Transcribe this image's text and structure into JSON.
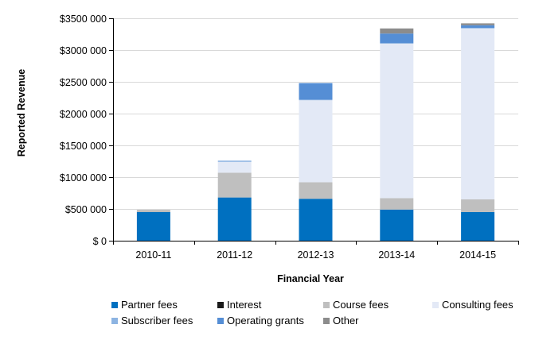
{
  "chart_data": {
    "type": "bar",
    "stacked": true,
    "title": "",
    "xlabel": "Financial Year",
    "ylabel": "Reported Revenue",
    "ylim": [
      0,
      3500000
    ],
    "ytick_values": [
      0,
      500000,
      1000000,
      1500000,
      2000000,
      2500000,
      3000000,
      3500000
    ],
    "ytick_labels": [
      "$ 0",
      "$500 000",
      "$1000 000",
      "$1500 000",
      "$2000 000",
      "$2500 000",
      "$3000 000",
      "$3500 000"
    ],
    "grid": true,
    "legend_position": "bottom",
    "categories": [
      "2010-11",
      "2011-12",
      "2012-13",
      "2013-14",
      "2014-15"
    ],
    "series": [
      {
        "name": "Partner fees",
        "color": "#0070C0",
        "values": [
          450000,
          680000,
          660000,
          490000,
          450000
        ]
      },
      {
        "name": "Interest",
        "color": "#1A1A1A",
        "values": [
          0,
          0,
          0,
          0,
          0
        ]
      },
      {
        "name": "Course fees",
        "color": "#BFBFBF",
        "values": [
          20000,
          390000,
          260000,
          180000,
          200000
        ]
      },
      {
        "name": "Consulting fees",
        "color": "#E3E9F6",
        "values": [
          0,
          170000,
          1290000,
          2430000,
          2690000
        ]
      },
      {
        "name": "Subscriber fees",
        "color": "#8DB4E2",
        "values": [
          0,
          20000,
          10000,
          10000,
          10000
        ]
      },
      {
        "name": "Operating grants",
        "color": "#558ED5",
        "values": [
          0,
          0,
          260000,
          150000,
          40000
        ]
      },
      {
        "name": "Other",
        "color": "#8C8C8C",
        "values": [
          10000,
          0,
          0,
          80000,
          30000
        ]
      }
    ]
  }
}
